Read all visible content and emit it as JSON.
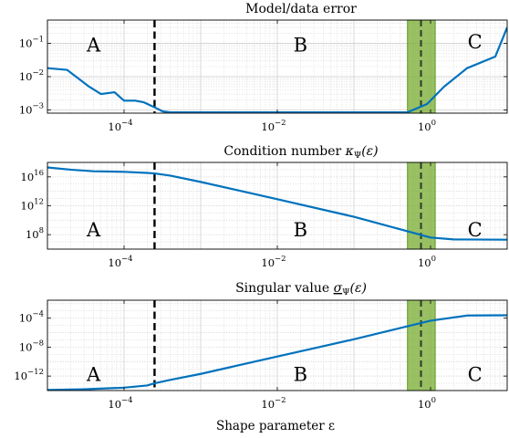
{
  "figure": {
    "xlabel": "Shape parameter ε"
  },
  "colors": {
    "line": "#0072BD",
    "band_fill": "#77AC30",
    "band_edge": "#5a9a1e",
    "grid": "#d4d4d4",
    "dashed": "#000000"
  },
  "chart_data": [
    {
      "type": "line",
      "title": "Model/data error",
      "xscale": "log",
      "yscale": "log",
      "xlim": [
        1e-05,
        10
      ],
      "ylim": [
        0.0008,
        0.5
      ],
      "xticks": [
        0.0001,
        0.01,
        1
      ],
      "xtick_labels": [
        "10",
        "10",
        "10"
      ],
      "xtick_exps": [
        "−4",
        "−2",
        "0"
      ],
      "yticks": [
        0.001,
        0.01,
        0.1
      ],
      "ytick_labels": [
        "10",
        "10",
        "10"
      ],
      "ytick_exps": [
        "−3",
        "−2",
        "−1"
      ],
      "grid": true,
      "vline": 0.00025,
      "band": [
        0.5,
        1.15
      ],
      "band_line": 0.75,
      "regions": [
        {
          "label": "A",
          "x": 4e-05,
          "y": 0.08
        },
        {
          "label": "B",
          "x": 0.02,
          "y": 0.08
        },
        {
          "label": "C",
          "x": 3.8,
          "y": 0.1
        }
      ],
      "series": [
        {
          "x": [
            1e-05,
            1.8e-05,
            2.5e-05,
            3.5e-05,
            5e-05,
            7.5e-05,
            0.0001,
            0.00014,
            0.00018,
            0.00025,
            0.00032,
            0.0004,
            0.01,
            0.5,
            0.9,
            1.5,
            3,
            7,
            10
          ],
          "y": [
            0.018,
            0.016,
            0.009,
            0.005,
            0.003,
            0.0034,
            0.0019,
            0.0019,
            0.0017,
            0.0012,
            0.0009,
            0.00085,
            0.00085,
            0.00085,
            0.0015,
            0.005,
            0.018,
            0.04,
            0.3
          ]
        }
      ]
    },
    {
      "type": "line",
      "title": "Condition number κ_Ψ(ε)",
      "xscale": "log",
      "yscale": "log",
      "xlim": [
        1e-05,
        10
      ],
      "ylim": [
        1000000,
        1e+18
      ],
      "xticks": [
        0.0001,
        0.01,
        1
      ],
      "xtick_labels": [
        "10",
        "10",
        "10"
      ],
      "xtick_exps": [
        "−4",
        "−2",
        "0"
      ],
      "yticks": [
        100000000.0,
        1000000000000.0,
        1e+16
      ],
      "ytick_labels": [
        "10",
        "10",
        "10"
      ],
      "ytick_exps": [
        "8",
        "12",
        "16"
      ],
      "grid": true,
      "vline": 0.00025,
      "band": [
        0.5,
        1.15
      ],
      "band_line": 0.75,
      "regions": [
        {
          "label": "A",
          "x": 4e-05,
          "y": 300000000.0
        },
        {
          "label": "B",
          "x": 0.02,
          "y": 300000000.0
        },
        {
          "label": "C",
          "x": 3.8,
          "y": 300000000.0
        }
      ],
      "series": [
        {
          "x": [
            1e-05,
            2e-05,
            4e-05,
            0.0001,
            0.0002,
            0.00025,
            0.0004,
            0.001,
            0.01,
            0.1,
            0.5,
            1,
            2,
            10
          ],
          "y": [
            2e+17,
            1e+17,
            6e+16,
            5e+16,
            3.5e+16,
            3e+16,
            1.5e+16,
            2000000000000000.0,
            8000000000000.0,
            30000000000.0,
            300000000.0,
            40000000.0,
            22000000.0,
            20000000.0
          ]
        }
      ]
    },
    {
      "type": "line",
      "title": "Singular value σ_Ψ(ε)",
      "xscale": "log",
      "yscale": "log",
      "xlim": [
        1e-05,
        10
      ],
      "ylim": [
        1e-14,
        0.03
      ],
      "xticks": [
        0.0001,
        0.01,
        1
      ],
      "xtick_labels": [
        "10",
        "10",
        "10"
      ],
      "xtick_exps": [
        "−4",
        "−2",
        "0"
      ],
      "yticks": [
        1e-12,
        1e-08,
        0.0001
      ],
      "ytick_labels": [
        "10",
        "10",
        "10"
      ],
      "ytick_exps": [
        "−12",
        "−8",
        "−4"
      ],
      "grid": true,
      "vline": 0.00025,
      "band": [
        0.5,
        1.15
      ],
      "band_line": 0.75,
      "regions": [
        {
          "label": "A",
          "x": 4e-05,
          "y": 1e-12
        },
        {
          "label": "B",
          "x": 0.02,
          "y": 1e-12
        },
        {
          "label": "C",
          "x": 3.8,
          "y": 1e-12
        }
      ],
      "series": [
        {
          "x": [
            1e-05,
            3e-05,
            0.0001,
            0.0002,
            0.00025,
            0.0004,
            0.001,
            0.01,
            0.1,
            1,
            3,
            10
          ],
          "y": [
            1.2e-14,
            1.5e-14,
            2.5e-14,
            5e-14,
            1e-13,
            3e-13,
            2e-12,
            5e-10,
            1.2e-07,
            4.5e-05,
            0.00023,
            0.00025
          ]
        }
      ]
    }
  ]
}
